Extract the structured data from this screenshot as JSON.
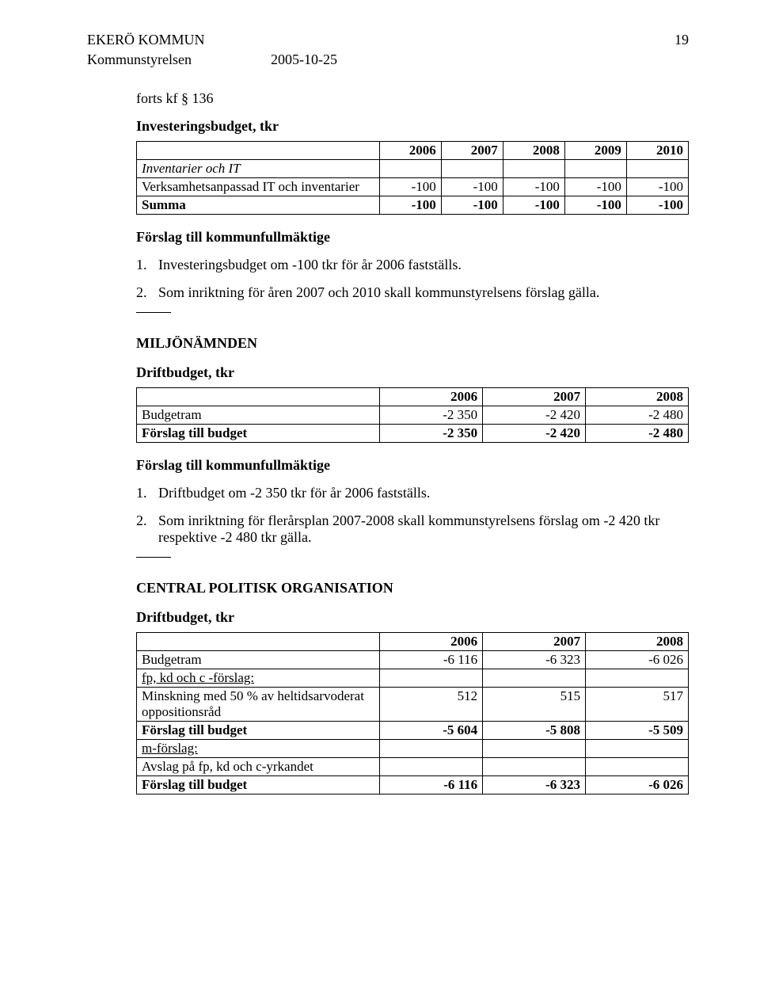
{
  "header": {
    "org": "EKERÖ KOMMUN",
    "page_num": "19",
    "committee": "Kommunstyrelsen",
    "date": "2005-10-25"
  },
  "cont": "forts kf § 136",
  "sec1": {
    "title": "Investeringsbudget, tkr",
    "years": [
      "2006",
      "2007",
      "2008",
      "2009",
      "2010"
    ],
    "row1_label": "Inventarier och IT",
    "row2_label": "Verksamhetsanpassad IT och inventarier",
    "row2_vals": [
      "-100",
      "-100",
      "-100",
      "-100",
      "-100"
    ],
    "sum_label": "Summa",
    "sum_vals": [
      "-100",
      "-100",
      "-100",
      "-100",
      "-100"
    ],
    "proposal_heading": "Förslag till kommunfullmäktige",
    "item1_num": "1.",
    "item1_txt": "Investeringsbudget om -100 tkr för år 2006 fastställs.",
    "item2_num": "2.",
    "item2_txt": "Som inriktning för åren 2007 och 2010 skall kommunstyrelsens förslag gälla."
  },
  "sec2": {
    "heading": "MILJÖNÄMNDEN",
    "sub": "Driftbudget, tkr",
    "years": [
      "2006",
      "2007",
      "2008"
    ],
    "row1_label": "Budgetram",
    "row1_vals": [
      "-2 350",
      "-2 420",
      "-2 480"
    ],
    "row2_label": "Förslag till budget",
    "row2_vals": [
      "-2 350",
      "-2 420",
      "-2 480"
    ],
    "proposal_heading": "Förslag till kommunfullmäktige",
    "item1_num": "1.",
    "item1_txt": "Driftbudget om -2 350 tkr för år 2006 fastställs.",
    "item2_num": "2.",
    "item2_txt": "Som inriktning för flerårsplan 2007-2008 skall kommunstyrelsens förslag om -2 420 tkr respektive -2 480 tkr gälla."
  },
  "sec3": {
    "heading": "CENTRAL POLITISK ORGANISATION",
    "sub": "Driftbudget, tkr",
    "years": [
      "2006",
      "2007",
      "2008"
    ],
    "r1_label": "Budgetram",
    "r1_vals": [
      "-6 116",
      "-6 323",
      "-6 026"
    ],
    "r2_label": "fp, kd och c -förslag:",
    "r3_label": "Minskning med 50 % av heltidsarvoderat oppositionsråd",
    "r3_vals": [
      "512",
      "515",
      "517"
    ],
    "r4_label": "Förslag till budget",
    "r4_vals": [
      "-5 604",
      "-5 808",
      "-5 509"
    ],
    "r5_label": "m-förslag:",
    "r6_label": "Avslag på fp, kd och c-yrkandet",
    "r7_label": "Förslag till budget",
    "r7_vals": [
      "-6 116",
      "-6 323",
      "-6 026"
    ]
  }
}
